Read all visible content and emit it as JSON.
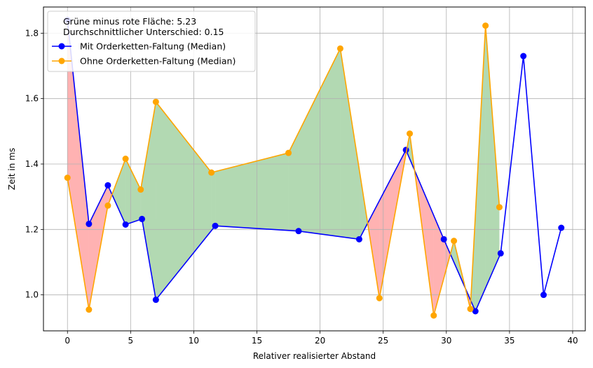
{
  "chart_data": {
    "type": "line",
    "xlabel": "Relativer realisierter Abstand",
    "ylabel": "Zeit in ms",
    "xlim": [
      -1.9,
      41.0
    ],
    "ylim": [
      0.89,
      1.88
    ],
    "xticks": [
      0,
      5,
      10,
      15,
      20,
      25,
      30,
      35,
      40
    ],
    "yticks": [
      1.0,
      1.2,
      1.4,
      1.6,
      1.8
    ],
    "xtick_labels": [
      "0",
      "5",
      "10",
      "15",
      "20",
      "25",
      "30",
      "35",
      "40"
    ],
    "ytick_labels": [
      "1.0",
      "1.2",
      "1.4",
      "1.6",
      "1.8"
    ],
    "grid": true,
    "legend_position": "top-left",
    "annotations": [
      "Grüne minus rote Fläche: 5.23",
      "Durchschnittlicher Unterschied: 0.15"
    ],
    "series": [
      {
        "name": "Mit Orderketten-Faltung (Median)",
        "color": "#0000ff",
        "x": [
          0.0,
          1.7,
          3.2,
          4.6,
          5.9,
          7.0,
          11.7,
          18.3,
          23.1,
          26.8,
          29.8,
          32.3,
          34.3,
          36.1,
          37.7,
          39.1
        ],
        "y": [
          1.84,
          1.217,
          1.335,
          1.215,
          1.232,
          0.985,
          1.211,
          1.195,
          1.17,
          1.443,
          1.17,
          0.95,
          1.127,
          1.73,
          1.0,
          1.205
        ]
      },
      {
        "name": "Ohne Orderketten-Faltung (Median)",
        "color": "#ffa500",
        "x": [
          0.0,
          1.7,
          3.2,
          4.6,
          5.8,
          7.0,
          11.4,
          17.5,
          21.6,
          24.7,
          27.1,
          29.0,
          30.6,
          31.9,
          33.1,
          34.2
        ],
        "y": [
          1.358,
          0.955,
          1.273,
          1.416,
          1.322,
          1.59,
          1.374,
          1.434,
          1.753,
          0.99,
          1.493,
          0.937,
          1.165,
          0.957,
          1.823,
          1.268
        ]
      }
    ],
    "fill_between": {
      "color_positive": "#008000",
      "color_negative": "#ff0000",
      "alpha": 0.3
    }
  }
}
